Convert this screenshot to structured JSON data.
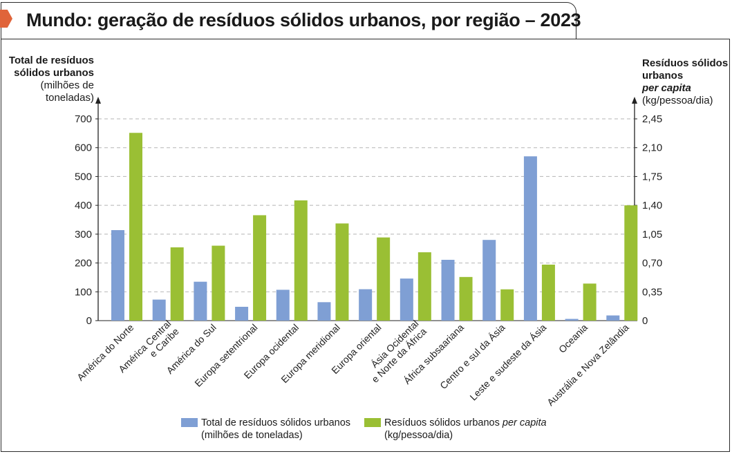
{
  "chart_data": {
    "type": "bar",
    "title": "Mundo: geração de resíduos sólidos urbanos, por região – 2023",
    "categories": [
      "América do Norte",
      [
        "América Central",
        "e Caribe"
      ],
      "América do Sul",
      "Europa setentrional",
      "Europa ocidental",
      "Europa meridional",
      "Europa oriental",
      [
        "Ásia Ocidental",
        "e Norte da África"
      ],
      "África subsaariana",
      "Centro e sul da Ásia",
      "Leste e sudeste da Ásia",
      "Oceania",
      "Austrália e Nova Zelândia"
    ],
    "series": [
      {
        "name": "Total de resíduos sólidos urbanos (milhões de toneladas)",
        "axis": "left",
        "color": "#7f9fd4",
        "values": [
          314,
          73,
          135,
          48,
          107,
          64,
          109,
          146,
          211,
          280,
          570,
          6,
          18
        ]
      },
      {
        "name": "Resíduos sólidos urbanos per capita (kg/pessoa/dia)",
        "axis": "right",
        "color": "#9abf34",
        "values": [
          2.28,
          0.89,
          0.91,
          1.28,
          1.46,
          1.18,
          1.01,
          0.83,
          0.53,
          0.38,
          0.68,
          0.45,
          1.4
        ]
      }
    ],
    "ylim_left": [
      0,
      700
    ],
    "yticks_left": [
      "0",
      "100",
      "200",
      "300",
      "400",
      "500",
      "600",
      "700"
    ],
    "ylim_right": [
      0,
      2.45
    ],
    "yticks_right": [
      "0",
      "0,35",
      "0,70",
      "1,05",
      "1,40",
      "1,75",
      "2,10",
      "2,45"
    ],
    "ylabel_left": {
      "line1": "Total de resíduos",
      "line2": "sólidos urbanos",
      "line3": "(milhões de",
      "line4": "toneladas)"
    },
    "ylabel_right": {
      "line1": "Resíduos sólidos",
      "line2": "urbanos",
      "line3": "per capita",
      "line4": "(kg/pessoa/dia)"
    },
    "legend": {
      "item1_line1": "Total de resíduos sólidos urbanos",
      "item1_line2": "(milhões de toneladas)",
      "item2_line1_a": "Resíduos sólidos urbanos ",
      "item2_line1_b": "per capita",
      "item2_line2": "(kg/pessoa/dia)"
    },
    "grid": true
  },
  "colors": {
    "accent": "#e0643a",
    "series_total": "#7f9fd4",
    "series_per_capita": "#9abf34"
  }
}
